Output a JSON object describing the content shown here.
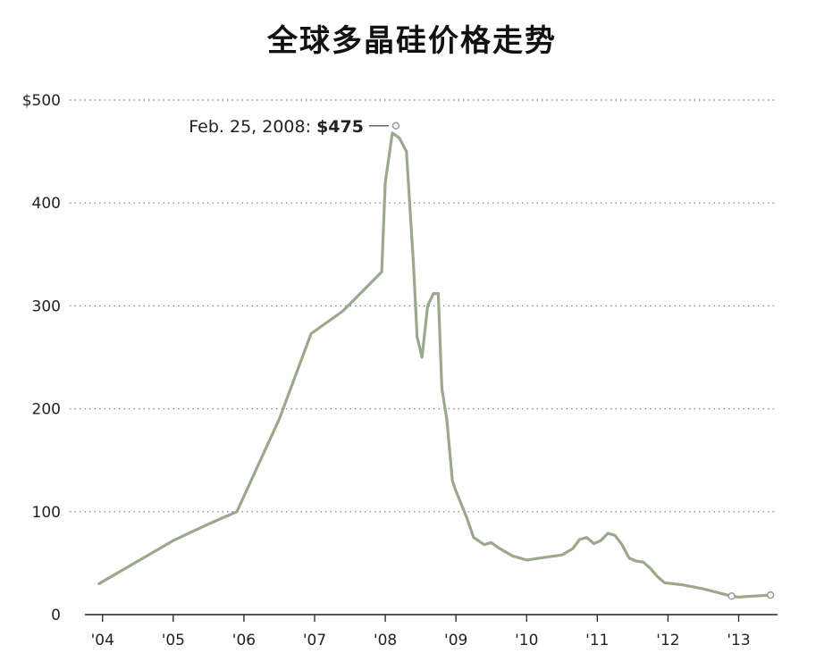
{
  "chart_data": {
    "type": "line",
    "title": "全球多晶硅价格走势",
    "xlabel": "",
    "ylabel": "",
    "ylim": [
      0,
      500
    ],
    "xlim": [
      2003.75,
      2013.55
    ],
    "y_ticks": [
      0,
      100,
      200,
      300,
      400,
      500
    ],
    "y_tick_labels": [
      "0",
      "100",
      "200",
      "300",
      "400",
      "$500"
    ],
    "x_ticks": [
      2004,
      2005,
      2006,
      2007,
      2008,
      2009,
      2010,
      2011,
      2012,
      2013
    ],
    "x_tick_labels": [
      "'04",
      "'05",
      "'06",
      "'07",
      "'08",
      "'09",
      "'10",
      "'11",
      "'12",
      "'13"
    ],
    "grid": "horizontal dotted",
    "annotation": {
      "date_text": "Feb. 25, 2008: ",
      "value_text": "$475",
      "x": 2008.15,
      "y": 475
    },
    "series": [
      {
        "color": "#9aa88c",
        "x": [
          2003.95,
          2004.5,
          2005.0,
          2005.5,
          2005.9,
          2006.5,
          2006.95,
          2007.4,
          2007.95,
          2008.0,
          2008.1,
          2008.2,
          2008.3,
          2008.4,
          2008.45,
          2008.52,
          2008.6,
          2008.68,
          2008.75,
          2008.8,
          2008.87,
          2008.95,
          2009.0,
          2009.15,
          2009.25,
          2009.4,
          2009.5,
          2009.6,
          2009.8,
          2010.0,
          2010.2,
          2010.5,
          2010.65,
          2010.75,
          2010.85,
          2010.95,
          2011.05,
          2011.15,
          2011.25,
          2011.35,
          2011.45,
          2011.55,
          2011.65,
          2011.75,
          2011.85,
          2011.95,
          2012.2,
          2012.5,
          2012.9,
          2013.0,
          2013.2,
          2013.45
        ],
        "values": [
          30,
          52,
          72,
          88,
          100,
          190,
          273,
          295,
          333,
          420,
          468,
          463,
          450,
          340,
          270,
          250,
          300,
          312,
          312,
          220,
          190,
          130,
          120,
          95,
          75,
          68,
          70,
          65,
          57,
          53,
          55,
          58,
          64,
          73,
          75,
          69,
          72,
          79,
          77,
          68,
          55,
          52,
          51,
          45,
          37,
          31,
          29,
          25,
          18,
          17,
          18,
          19
        ]
      }
    ]
  }
}
